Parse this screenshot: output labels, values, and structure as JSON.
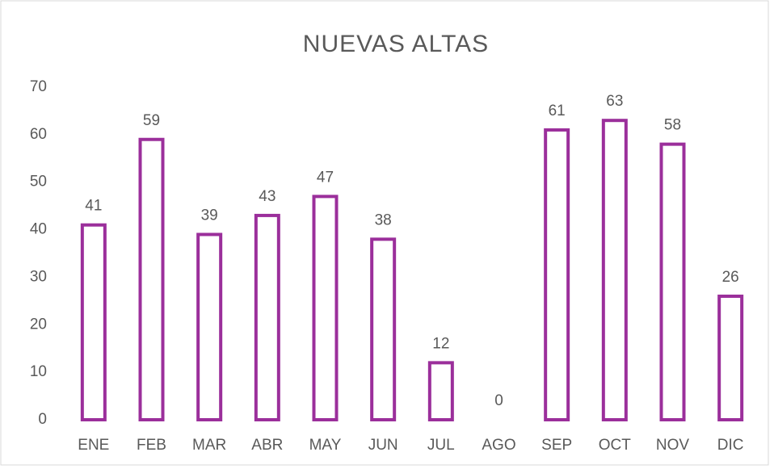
{
  "chart_data": {
    "type": "bar",
    "title": "NUEVAS ALTAS",
    "categories": [
      "ENE",
      "FEB",
      "MAR",
      "ABR",
      "MAY",
      "JUN",
      "JUL",
      "AGO",
      "SEP",
      "OCT",
      "NOV",
      "DIC"
    ],
    "values": [
      41,
      59,
      39,
      43,
      47,
      38,
      12,
      0,
      61,
      63,
      58,
      26
    ],
    "color": "#9b2f9b",
    "ylim": [
      0,
      70
    ],
    "yticks": [
      0,
      10,
      20,
      30,
      40,
      50,
      60,
      70
    ],
    "grid": false
  }
}
